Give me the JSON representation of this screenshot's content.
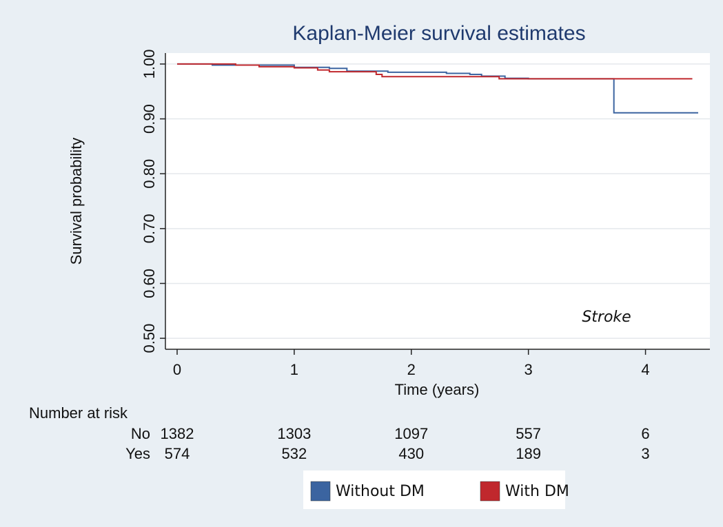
{
  "chart_data": {
    "type": "km",
    "title": "Kaplan-Meier survival estimates",
    "xlabel": "Time (years)",
    "ylabel": "Survival probability",
    "annotation": "Stroke",
    "xlim": [
      -0.1,
      4.55
    ],
    "ylim": [
      0.48,
      1.02
    ],
    "xticks": [
      0,
      1,
      2,
      3,
      4
    ],
    "yticks": [
      {
        "value": 0.5,
        "label": "0.50"
      },
      {
        "value": 0.6,
        "label": "0.60"
      },
      {
        "value": 0.7,
        "label": "0.70"
      },
      {
        "value": 0.8,
        "label": "0.80"
      },
      {
        "value": 0.9,
        "label": "0.90"
      },
      {
        "value": 1.0,
        "label": "1.00"
      }
    ],
    "grid": true,
    "series": [
      {
        "name": "Without DM",
        "color": "#3b64a0",
        "x": [
          0,
          0.3,
          1.0,
          1.3,
          1.45,
          1.8,
          2.3,
          2.5,
          2.6,
          2.8,
          3.0,
          3.73,
          4.45
        ],
        "values": [
          1.0,
          0.998,
          0.994,
          0.992,
          0.987,
          0.985,
          0.983,
          0.981,
          0.978,
          0.974,
          0.973,
          0.911,
          0.911
        ]
      },
      {
        "name": "With DM",
        "color": "#c0282d",
        "x": [
          0,
          0.5,
          0.7,
          1.0,
          1.2,
          1.3,
          1.7,
          1.75,
          2.75,
          4.4
        ],
        "values": [
          1.0,
          0.998,
          0.995,
          0.993,
          0.989,
          0.986,
          0.981,
          0.977,
          0.973,
          0.973
        ]
      }
    ],
    "risk_table": {
      "title": "Number at risk",
      "rows": [
        {
          "label": "No",
          "counts": [
            1382,
            1303,
            1097,
            557,
            6
          ]
        },
        {
          "label": "Yes",
          "counts": [
            574,
            532,
            430,
            189,
            3
          ]
        }
      ]
    }
  }
}
